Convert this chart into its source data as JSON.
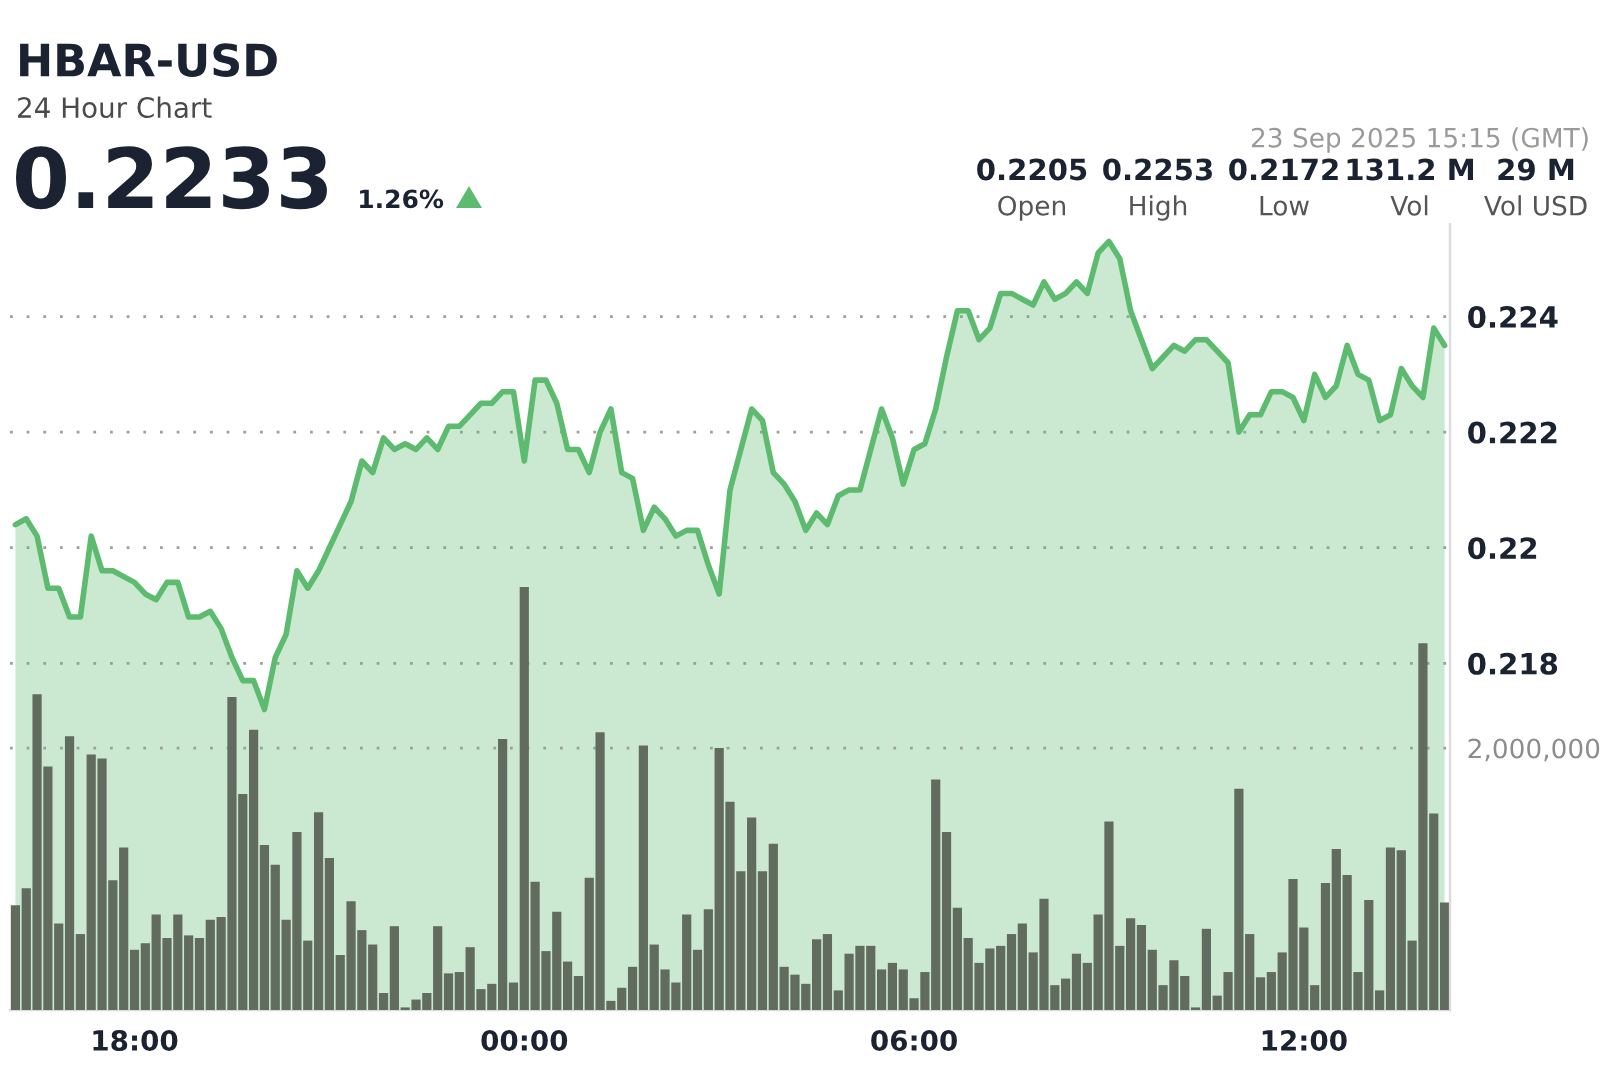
{
  "chart_data": {
    "type": "area",
    "title": "HBAR-USD",
    "subtitle": "24 Hour Chart",
    "annotations": [
      "0.2233",
      "1.26%",
      "23 Sep 2025 15:15 (GMT)",
      "0.2205",
      "Open",
      "0.2253",
      "High",
      "0.2172",
      "Low",
      "131.2 M",
      "Vol",
      "29 M",
      "Vol USD"
    ],
    "x": [
      "2025-09-22T16:10",
      "2025-09-22T16:20",
      "2025-09-22T16:30",
      "2025-09-22T16:40",
      "2025-09-22T16:50",
      "2025-09-22T17:00",
      "2025-09-22T17:10",
      "2025-09-22T17:20",
      "2025-09-22T17:30",
      "2025-09-22T17:40",
      "2025-09-22T17:50",
      "2025-09-22T18:00",
      "2025-09-22T18:10",
      "2025-09-22T18:20",
      "2025-09-22T18:30",
      "2025-09-22T18:40",
      "2025-09-22T18:50",
      "2025-09-22T19:00",
      "2025-09-22T19:10",
      "2025-09-22T19:20",
      "2025-09-22T19:30",
      "2025-09-22T19:40",
      "2025-09-22T19:50",
      "2025-09-22T20:00",
      "2025-09-22T20:10",
      "2025-09-22T20:20",
      "2025-09-22T20:30",
      "2025-09-22T20:40",
      "2025-09-22T20:50",
      "2025-09-22T21:00",
      "2025-09-22T21:10",
      "2025-09-22T21:20",
      "2025-09-22T21:30",
      "2025-09-22T21:40",
      "2025-09-22T21:50",
      "2025-09-22T22:00",
      "2025-09-22T22:10",
      "2025-09-22T22:20",
      "2025-09-22T22:30",
      "2025-09-22T22:40",
      "2025-09-22T22:50",
      "2025-09-22T23:00",
      "2025-09-22T23:10",
      "2025-09-22T23:20",
      "2025-09-22T23:30",
      "2025-09-22T23:40",
      "2025-09-22T23:50",
      "2025-09-23T00:00",
      "2025-09-23T00:10",
      "2025-09-23T00:20",
      "2025-09-23T00:30",
      "2025-09-23T00:40",
      "2025-09-23T00:50",
      "2025-09-23T01:00",
      "2025-09-23T01:10",
      "2025-09-23T01:20",
      "2025-09-23T01:30",
      "2025-09-23T01:40",
      "2025-09-23T01:50",
      "2025-09-23T02:00",
      "2025-09-23T02:10",
      "2025-09-23T02:20",
      "2025-09-23T02:30",
      "2025-09-23T02:40",
      "2025-09-23T02:50",
      "2025-09-23T03:00",
      "2025-09-23T03:10",
      "2025-09-23T03:20",
      "2025-09-23T03:30",
      "2025-09-23T03:40",
      "2025-09-23T03:50",
      "2025-09-23T04:00",
      "2025-09-23T04:10",
      "2025-09-23T04:20",
      "2025-09-23T04:30",
      "2025-09-23T04:40",
      "2025-09-23T04:50",
      "2025-09-23T05:00",
      "2025-09-23T05:10",
      "2025-09-23T05:20",
      "2025-09-23T05:30",
      "2025-09-23T05:40",
      "2025-09-23T05:50",
      "2025-09-23T06:00",
      "2025-09-23T06:10",
      "2025-09-23T06:20",
      "2025-09-23T06:30",
      "2025-09-23T06:40",
      "2025-09-23T06:50",
      "2025-09-23T07:00",
      "2025-09-23T07:10",
      "2025-09-23T07:20",
      "2025-09-23T07:30",
      "2025-09-23T07:40",
      "2025-09-23T07:50",
      "2025-09-23T08:00",
      "2025-09-23T08:10",
      "2025-09-23T08:20",
      "2025-09-23T08:30",
      "2025-09-23T08:40",
      "2025-09-23T08:50",
      "2025-09-23T09:00",
      "2025-09-23T09:10",
      "2025-09-23T09:20",
      "2025-09-23T09:30",
      "2025-09-23T09:40",
      "2025-09-23T09:50",
      "2025-09-23T10:00",
      "2025-09-23T10:10",
      "2025-09-23T10:20",
      "2025-09-23T10:30",
      "2025-09-23T10:40",
      "2025-09-23T10:50",
      "2025-09-23T11:00",
      "2025-09-23T11:10",
      "2025-09-23T11:20",
      "2025-09-23T11:30",
      "2025-09-23T11:40",
      "2025-09-23T11:50",
      "2025-09-23T12:00",
      "2025-09-23T12:10",
      "2025-09-23T12:20",
      "2025-09-23T12:30",
      "2025-09-23T12:40",
      "2025-09-23T12:50",
      "2025-09-23T13:00",
      "2025-09-23T13:10",
      "2025-09-23T13:20",
      "2025-09-23T13:30",
      "2025-09-23T13:40",
      "2025-09-23T13:50",
      "2025-09-23T14:00",
      "2025-09-23T14:10"
    ],
    "series": [
      {
        "color": "#5dbb6f",
        "values": [
          0.2204,
          0.2205,
          0.2202,
          0.2193,
          0.2193,
          0.2188,
          0.2188,
          0.2202,
          0.2196,
          0.2196,
          0.2195,
          0.2194,
          0.2192,
          0.2191,
          0.2194,
          0.2194,
          0.2188,
          0.2188,
          0.2189,
          0.2186,
          0.2181,
          0.2177,
          0.2177,
          0.2172,
          0.2181,
          0.2185,
          0.2196,
          0.2193,
          0.2196,
          0.22,
          0.2204,
          0.2208,
          0.2215,
          0.2213,
          0.2219,
          0.2217,
          0.2218,
          0.2217,
          0.2219,
          0.2217,
          0.2221,
          0.2221,
          0.2223,
          0.2225,
          0.2225,
          0.2227,
          0.2227,
          0.2215,
          0.2229,
          0.2229,
          0.2225,
          0.2217,
          0.2217,
          0.2213,
          0.222,
          0.2224,
          0.2213,
          0.2212,
          0.2203,
          0.2207,
          0.2205,
          0.2202,
          0.2203,
          0.2203,
          0.2197,
          0.2192,
          0.221,
          0.2217,
          0.2224,
          0.2222,
          0.2213,
          0.2211,
          0.2208,
          0.2203,
          0.2206,
          0.2204,
          0.2209,
          0.221,
          0.221,
          0.2217,
          0.2224,
          0.2219,
          0.2211,
          0.2217,
          0.2218,
          0.2224,
          0.2233,
          0.2241,
          0.2241,
          0.2236,
          0.2238,
          0.2244,
          0.2244,
          0.2243,
          0.2242,
          0.2246,
          0.2243,
          0.2244,
          0.2246,
          0.2244,
          0.2251,
          0.2253,
          0.225,
          0.2241,
          0.2236,
          0.2231,
          0.2233,
          0.2235,
          0.2234,
          0.2236,
          0.2236,
          0.2234,
          0.2232,
          0.222,
          0.2223,
          0.2223,
          0.2227,
          0.2227,
          0.2226,
          0.2222,
          0.223,
          0.2226,
          0.2228,
          0.2235,
          0.223,
          0.2229,
          0.2222,
          0.2223,
          0.2231,
          0.2228,
          0.2226,
          0.2238,
          0.2235
        ]
      },
      {
        "type": "bar",
        "axis": "y2",
        "color": "#616c5f",
        "values": [
          800000,
          930000,
          2410000,
          1860000,
          660000,
          2090000,
          580000,
          1950000,
          1920000,
          990000,
          1240000,
          460000,
          510000,
          730000,
          550000,
          730000,
          570000,
          550000,
          690000,
          710000,
          2390000,
          1650000,
          2140000,
          1260000,
          1110000,
          690000,
          1360000,
          530000,
          1510000,
          1160000,
          420000,
          830000,
          610000,
          500000,
          130000,
          640000,
          20000,
          80000,
          130000,
          640000,
          280000,
          290000,
          480000,
          160000,
          200000,
          2070000,
          210000,
          3230000,
          980000,
          450000,
          750000,
          370000,
          260000,
          1010000,
          2120000,
          70000,
          170000,
          330000,
          2020000,
          500000,
          310000,
          210000,
          730000,
          460000,
          770000,
          2000000,
          1590000,
          1060000,
          1470000,
          1060000,
          1270000,
          330000,
          270000,
          200000,
          540000,
          580000,
          150000,
          430000,
          490000,
          490000,
          310000,
          360000,
          310000,
          90000,
          290000,
          1760000,
          1360000,
          780000,
          550000,
          360000,
          470000,
          490000,
          580000,
          660000,
          440000,
          850000,
          190000,
          240000,
          430000,
          360000,
          730000,
          1440000,
          490000,
          700000,
          650000,
          460000,
          190000,
          380000,
          260000,
          20000,
          620000,
          110000,
          290000,
          1690000,
          580000,
          250000,
          290000,
          440000,
          1000000,
          630000,
          190000,
          970000,
          1230000,
          1030000,
          290000,
          840000,
          150000,
          1240000,
          1220000,
          530000,
          2800000,
          1500000,
          820000
        ]
      }
    ],
    "xlim": [
      "2025-09-22T16:05",
      "2025-09-23T14:15"
    ],
    "xticks": [
      {
        "value": "2025-09-22T18:00",
        "label": "18:00"
      },
      {
        "value": "2025-09-23T00:00",
        "label": "00:00"
      },
      {
        "value": "2025-09-23T06:00",
        "label": "06:00"
      },
      {
        "value": "2025-09-23T12:00",
        "label": "12:00"
      }
    ],
    "ylim": [
      0.212,
      0.2256
    ],
    "yticks": [
      0.224,
      0.222,
      0.22,
      0.218
    ],
    "y2lim": [
      0,
      6000000
    ],
    "y2ticks": [
      {
        "value": 2000000,
        "label": "2,000,000"
      }
    ],
    "grid": "y"
  }
}
